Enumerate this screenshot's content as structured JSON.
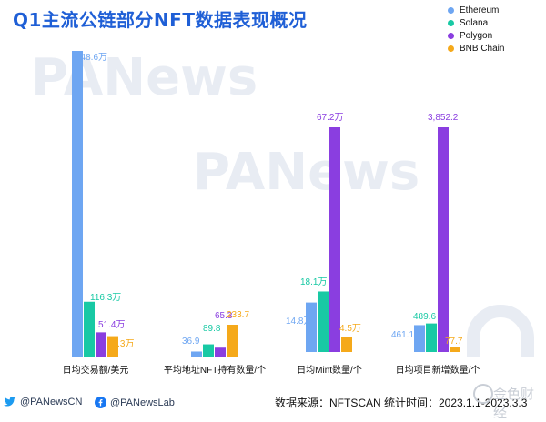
{
  "title": "Q1主流公链部分NFT数据表现概况",
  "legend": [
    {
      "label": "Ethereum",
      "color": "#6ea6f2"
    },
    {
      "label": "Solana",
      "color": "#18c9a4"
    },
    {
      "label": "Polygon",
      "color": "#8a3ee0"
    },
    {
      "label": "BNB Chain",
      "color": "#f5a91a"
    }
  ],
  "chart_data": {
    "type": "bar",
    "series_names": [
      "Ethereum",
      "Solana",
      "Polygon",
      "BNB Chain"
    ],
    "groups": [
      {
        "category": "日均交易额/美元",
        "values": [
          648.6,
          116.3,
          51.4,
          43.3
        ],
        "labels": [
          "648.6万",
          "116.3万",
          "51.4万",
          "43.3万"
        ],
        "unit": "万美元"
      },
      {
        "category": "平均地址NFT持有数量/个",
        "values": [
          36.9,
          89.8,
          65.3,
          233.7
        ],
        "labels": [
          "36.9",
          "89.8",
          "65.3",
          "233.7"
        ]
      },
      {
        "category": "日均Mint数量/个",
        "values": [
          14.8,
          18.1,
          67.2,
          4.5
        ],
        "labels": [
          "14.8万",
          "18.1万",
          "67.2万",
          "4.5万"
        ],
        "unit": "万个"
      },
      {
        "category": "日均项目新增数量/个",
        "values": [
          461.1,
          489.6,
          3852.2,
          77.7
        ],
        "labels": [
          "461.1",
          "489.6",
          "3,852.2",
          "77.7"
        ]
      }
    ],
    "note": "each group is drawn on its own scale"
  },
  "watermark": "PANews",
  "footer": {
    "twitter": "@PANewsCN",
    "facebook": "@PANewsLab",
    "source": "数据来源：NFTSCAN 统计时间：2023.1.1-2023.3.3"
  },
  "logo_text": "金色财经",
  "colors": {
    "title": "#1f5fd6",
    "baseline": "#111111",
    "watermark": "#e8ecf3"
  }
}
